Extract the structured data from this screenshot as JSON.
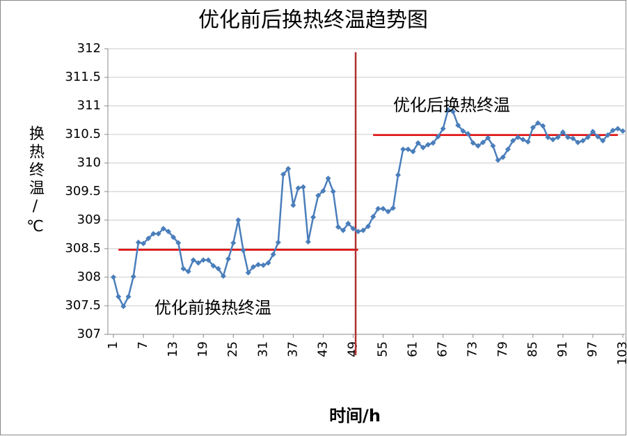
{
  "chart_data": {
    "type": "line",
    "title": "优化前后换热终温趋势图",
    "x_label": "时间/h",
    "y_label": "换热终温/℃",
    "x": [
      1,
      2,
      3,
      4,
      5,
      6,
      7,
      8,
      9,
      10,
      11,
      12,
      13,
      14,
      15,
      16,
      17,
      18,
      19,
      20,
      21,
      22,
      23,
      24,
      25,
      26,
      27,
      28,
      29,
      30,
      31,
      32,
      33,
      34,
      35,
      36,
      37,
      38,
      39,
      40,
      41,
      42,
      43,
      44,
      45,
      46,
      47,
      48,
      49,
      50,
      51,
      52,
      53,
      54,
      55,
      56,
      57,
      58,
      59,
      60,
      61,
      62,
      63,
      64,
      65,
      66,
      67,
      68,
      69,
      70,
      71,
      72,
      73,
      74,
      75,
      76,
      77,
      78,
      79,
      80,
      81,
      82,
      83,
      84,
      85,
      86,
      87,
      88,
      89,
      90,
      91,
      92,
      93,
      94,
      95,
      96,
      97,
      98,
      99,
      100,
      101,
      102,
      103
    ],
    "series": [
      {
        "color": "#4a7ebb",
        "values": [
          308.0,
          307.66,
          307.49,
          307.66,
          308.01,
          308.61,
          308.59,
          308.68,
          308.76,
          308.76,
          308.85,
          308.8,
          308.7,
          308.6,
          308.15,
          308.1,
          308.3,
          308.25,
          308.3,
          308.3,
          308.2,
          308.15,
          308.02,
          308.32,
          308.6,
          309.0,
          308.47,
          308.08,
          308.18,
          308.22,
          308.21,
          308.25,
          308.4,
          308.61,
          309.8,
          309.9,
          309.26,
          309.56,
          309.58,
          308.62,
          309.05,
          309.43,
          309.51,
          309.73,
          309.5,
          308.88,
          308.82,
          308.94,
          308.85,
          308.8,
          308.82,
          308.89,
          309.06,
          309.2,
          309.2,
          309.15,
          309.21,
          309.79,
          310.24,
          310.24,
          310.2,
          310.35,
          310.27,
          310.32,
          310.35,
          310.46,
          310.6,
          310.93,
          310.9,
          310.66,
          310.56,
          310.51,
          310.35,
          310.3,
          310.36,
          310.44,
          310.3,
          310.05,
          310.1,
          310.24,
          310.39,
          310.45,
          310.41,
          310.37,
          310.62,
          310.7,
          310.65,
          310.45,
          310.41,
          310.45,
          310.54,
          310.45,
          310.43,
          310.36,
          310.39,
          310.45,
          310.55,
          310.46,
          310.39,
          310.49,
          310.57,
          310.6,
          310.56
        ]
      }
    ],
    "xlim": [
      1,
      103
    ],
    "xticks": [
      1,
      7,
      13,
      19,
      25,
      31,
      37,
      43,
      49,
      55,
      61,
      67,
      73,
      79,
      85,
      91,
      97,
      103
    ],
    "ylim": [
      307,
      312
    ],
    "yticks": [
      307,
      307.5,
      308,
      308.5,
      309,
      309.5,
      310,
      310.5,
      311,
      311.5,
      312
    ],
    "grid": true,
    "reference_lines": [
      {
        "label": "优化前换热终温",
        "value": 308.48,
        "from": 2,
        "to": 50,
        "color": "#e00000"
      },
      {
        "label": "优化后换热终温",
        "value": 310.49,
        "from": 53,
        "to": 102,
        "color": "#e00000"
      }
    ],
    "divider": {
      "x": 49.5,
      "color": "#b03030"
    }
  }
}
